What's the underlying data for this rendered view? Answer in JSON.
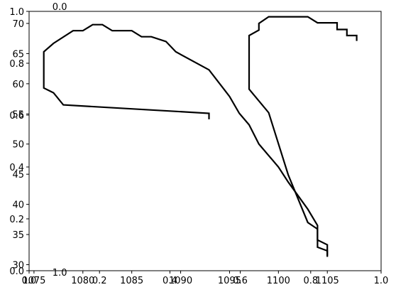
{
  "chart_data": {
    "type": "line",
    "title": "",
    "xlabel": "",
    "ylabel": "",
    "line_color": "#000000",
    "frame_color": "#000000",
    "background": "#ffffff",
    "grid": false,
    "legend": "none",
    "xlim": [
      1074.5,
      1110.5
    ],
    "ylim": [
      29,
      72
    ],
    "xticks": [
      {
        "value": 1075,
        "label": "1075"
      },
      {
        "value": 1080,
        "label": "1080"
      },
      {
        "value": 1085,
        "label": "1085"
      },
      {
        "value": 1090,
        "label": "1090"
      },
      {
        "value": 1095,
        "label": "1095"
      },
      {
        "value": 1100,
        "label": "1100"
      },
      {
        "value": 1105,
        "label": "1105"
      }
    ],
    "yticks": [
      {
        "value": 30,
        "label": "30"
      },
      {
        "value": 35,
        "label": "35"
      },
      {
        "value": 40,
        "label": "40"
      },
      {
        "value": 45,
        "label": "45"
      },
      {
        "value": 50,
        "label": "50"
      },
      {
        "value": 55,
        "label": "55"
      },
      {
        "value": 60,
        "label": "60"
      },
      {
        "value": 65,
        "label": "65"
      },
      {
        "value": 70,
        "label": "70"
      }
    ],
    "overlay_axis": {
      "xticks": [
        {
          "value": 0.0,
          "label": "0.0"
        },
        {
          "value": 0.2,
          "label": "0.2"
        },
        {
          "value": 0.4,
          "label": "0.4"
        },
        {
          "value": 0.6,
          "label": "0.6"
        },
        {
          "value": 0.8,
          "label": "0.8"
        },
        {
          "value": 1.0,
          "label": "1.0"
        }
      ],
      "yticks": [
        {
          "value": 0.0,
          "label": "0.0"
        },
        {
          "value": 0.2,
          "label": "0.2"
        },
        {
          "value": 0.4,
          "label": "0.4"
        },
        {
          "value": 0.6,
          "label": "0.6"
        },
        {
          "value": 0.8,
          "label": "0.8"
        },
        {
          "value": 1.0,
          "label": "1.0"
        }
      ]
    },
    "top_axis": {
      "xticks": [
        {
          "value": 0.0,
          "label": "0.0"
        },
        {
          "value": 1.0,
          "label": "1.0"
        }
      ]
    },
    "series": [
      {
        "values": [
          {
            "x": 1092.9,
            "y": 54.1
          },
          {
            "x": 1092.9,
            "y": 55.1
          },
          {
            "x": 1078.0,
            "y": 56.5
          },
          {
            "x": 1077.0,
            "y": 58.5
          },
          {
            "x": 1076.0,
            "y": 59.3
          },
          {
            "x": 1076.0,
            "y": 65.3
          },
          {
            "x": 1077.0,
            "y": 66.7
          },
          {
            "x": 1079.0,
            "y": 68.8
          },
          {
            "x": 1080.0,
            "y": 68.8
          },
          {
            "x": 1081.0,
            "y": 69.8
          },
          {
            "x": 1082.0,
            "y": 69.8
          },
          {
            "x": 1083.0,
            "y": 68.8
          },
          {
            "x": 1085.0,
            "y": 68.8
          },
          {
            "x": 1086.0,
            "y": 67.8
          },
          {
            "x": 1087.0,
            "y": 67.8
          },
          {
            "x": 1088.5,
            "y": 67.0
          },
          {
            "x": 1089.5,
            "y": 65.3
          },
          {
            "x": 1092.9,
            "y": 62.3
          },
          {
            "x": 1095.0,
            "y": 57.9
          },
          {
            "x": 1096.0,
            "y": 55.1
          },
          {
            "x": 1097.0,
            "y": 53.2
          },
          {
            "x": 1098.0,
            "y": 50.0
          },
          {
            "x": 1100.0,
            "y": 46.2
          },
          {
            "x": 1101.0,
            "y": 43.7
          },
          {
            "x": 1103.0,
            "y": 39.2
          },
          {
            "x": 1104.0,
            "y": 36.5
          },
          {
            "x": 1104.0,
            "y": 34.1
          },
          {
            "x": 1105.0,
            "y": 33.3
          },
          {
            "x": 1105.0,
            "y": 31.3
          }
        ]
      },
      {
        "values": [
          {
            "x": 1105.0,
            "y": 31.5
          },
          {
            "x": 1105.0,
            "y": 32.3
          },
          {
            "x": 1104.0,
            "y": 32.9
          },
          {
            "x": 1104.0,
            "y": 35.9
          },
          {
            "x": 1103.0,
            "y": 37.0
          },
          {
            "x": 1101.0,
            "y": 44.9
          },
          {
            "x": 1099.0,
            "y": 55.2
          },
          {
            "x": 1097.0,
            "y": 59.1
          },
          {
            "x": 1097.0,
            "y": 68.0
          },
          {
            "x": 1098.0,
            "y": 68.9
          },
          {
            "x": 1098.0,
            "y": 70.0
          },
          {
            "x": 1099.0,
            "y": 71.1
          },
          {
            "x": 1103.0,
            "y": 71.1
          },
          {
            "x": 1104.0,
            "y": 70.1
          },
          {
            "x": 1106.0,
            "y": 70.1
          },
          {
            "x": 1106.0,
            "y": 69.0
          },
          {
            "x": 1107.0,
            "y": 69.0
          },
          {
            "x": 1107.0,
            "y": 68.0
          },
          {
            "x": 1108.0,
            "y": 68.0
          },
          {
            "x": 1108.0,
            "y": 67.1
          }
        ]
      }
    ]
  }
}
